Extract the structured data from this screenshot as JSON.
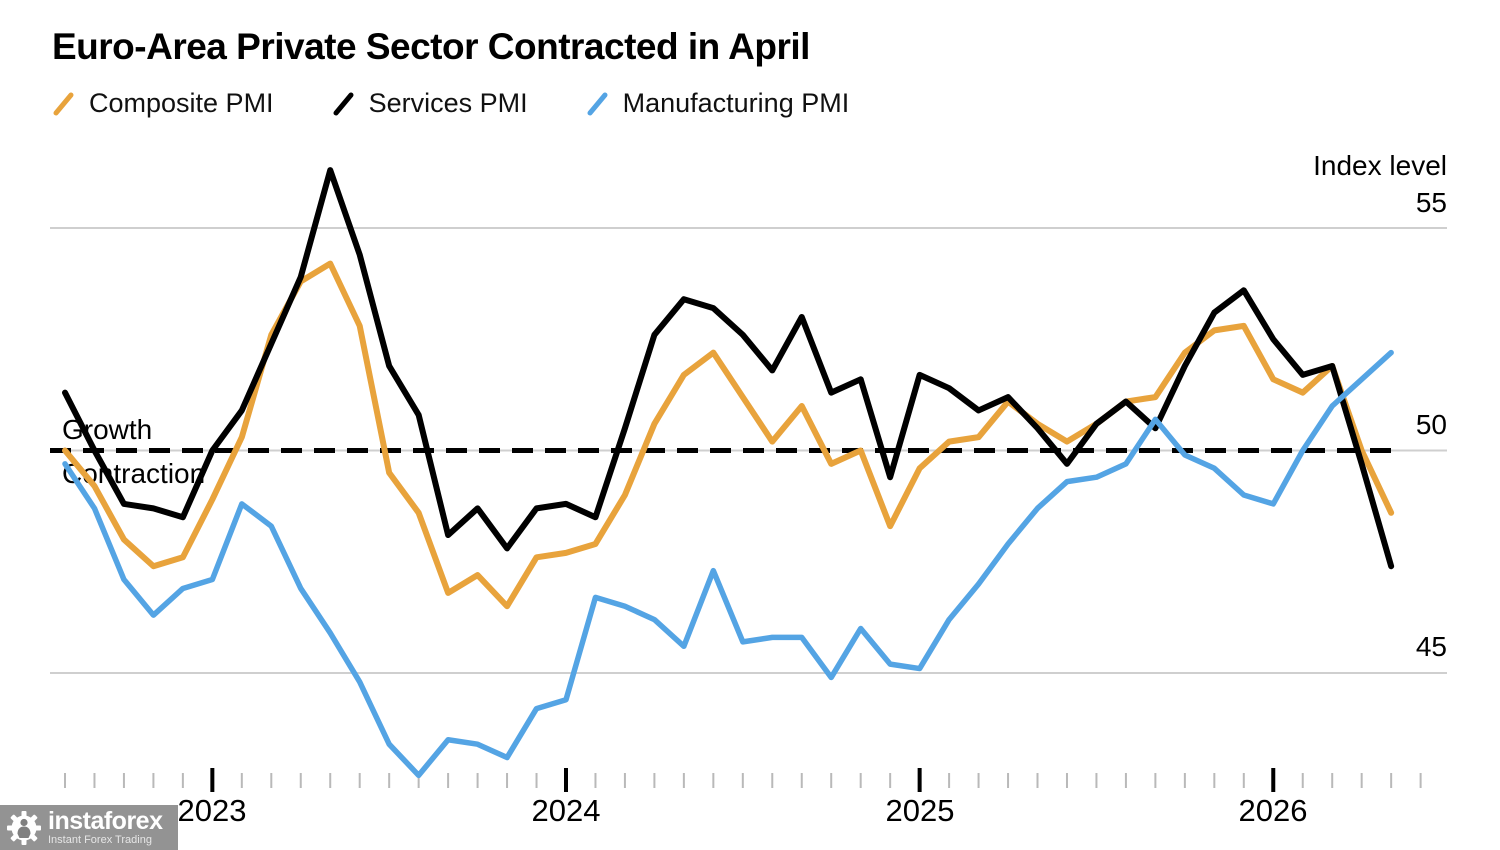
{
  "title": "Euro-Area Private Sector Contracted in April",
  "axis": {
    "unit_label": "Index level",
    "years": [
      "2023",
      "2024",
      "2025",
      "2026"
    ]
  },
  "annotations": {
    "above_baseline": "Growth",
    "below_baseline": "Contraction"
  },
  "watermark": {
    "name": "instaforex",
    "tagline": "Instant Forex Trading"
  },
  "chart_data": {
    "type": "line",
    "title": "Euro-Area Private Sector Contracted in April",
    "ylabel": "Index level",
    "grid": "horizontal",
    "legend_position": "top",
    "yticks": [
      55,
      50,
      45
    ],
    "baseline": 50,
    "ylim": [
      41.5,
      57.5
    ],
    "x_tick_labels": [
      "2023",
      "2024",
      "2025",
      "2026"
    ],
    "x_months": [
      "2022-08",
      "2022-09",
      "2022-10",
      "2022-11",
      "2022-12",
      "2023-01",
      "2023-02",
      "2023-03",
      "2023-04",
      "2023-05",
      "2023-06",
      "2023-07",
      "2023-08",
      "2023-09",
      "2023-10",
      "2023-11",
      "2023-12",
      "2024-01",
      "2024-02",
      "2024-03",
      "2024-04",
      "2024-05",
      "2024-06",
      "2024-07",
      "2024-08",
      "2024-09",
      "2024-10",
      "2024-11",
      "2024-12",
      "2025-01",
      "2025-02",
      "2025-03",
      "2025-04",
      "2025-05",
      "2025-06",
      "2025-07",
      "2025-08",
      "2025-09",
      "2025-10",
      "2025-11",
      "2025-12",
      "2026-01",
      "2026-02",
      "2026-03",
      "2026-04",
      "2026-05"
    ],
    "series": [
      {
        "name": "Composite PMI",
        "color": "#E8A33C",
        "values": [
          50.0,
          49.2,
          48.0,
          47.4,
          47.6,
          48.9,
          50.3,
          52.6,
          53.8,
          54.2,
          52.8,
          49.5,
          48.6,
          46.8,
          47.2,
          46.5,
          47.6,
          47.7,
          47.9,
          49.0,
          50.6,
          51.7,
          52.2,
          51.2,
          50.2,
          51.0,
          49.7,
          50.0,
          48.3,
          49.6,
          50.2,
          50.3,
          51.1,
          50.6,
          50.2,
          50.6,
          51.1,
          51.2,
          52.2,
          52.7,
          52.8,
          51.6,
          51.3,
          51.9,
          50.0,
          48.6
        ]
      },
      {
        "name": "Services PMI",
        "color": "#000000",
        "values": [
          51.3,
          50.0,
          48.8,
          48.7,
          48.5,
          50.0,
          50.9,
          52.4,
          53.9,
          56.3,
          54.4,
          51.9,
          50.8,
          48.1,
          48.7,
          47.8,
          48.7,
          48.8,
          48.5,
          50.5,
          52.6,
          53.4,
          53.2,
          52.6,
          51.8,
          53.0,
          51.3,
          51.6,
          49.4,
          51.7,
          51.4,
          50.9,
          51.2,
          50.5,
          49.7,
          50.6,
          51.1,
          50.5,
          51.9,
          53.1,
          53.6,
          52.5,
          51.7,
          51.9,
          49.7,
          47.4
        ]
      },
      {
        "name": "Manufacturing PMI",
        "color": "#54A4E4",
        "values": [
          49.7,
          48.7,
          47.1,
          46.3,
          46.9,
          47.1,
          48.8,
          48.3,
          46.9,
          45.9,
          44.8,
          43.4,
          42.7,
          43.5,
          43.4,
          43.1,
          44.2,
          44.4,
          46.7,
          46.5,
          46.2,
          45.6,
          47.3,
          45.7,
          45.8,
          45.8,
          44.9,
          46.0,
          45.2,
          45.1,
          46.2,
          47.0,
          47.9,
          48.7,
          49.3,
          49.4,
          49.7,
          50.7,
          49.9,
          49.6,
          49.0,
          48.8,
          50.0,
          51.0,
          51.6,
          52.2
        ]
      }
    ]
  }
}
